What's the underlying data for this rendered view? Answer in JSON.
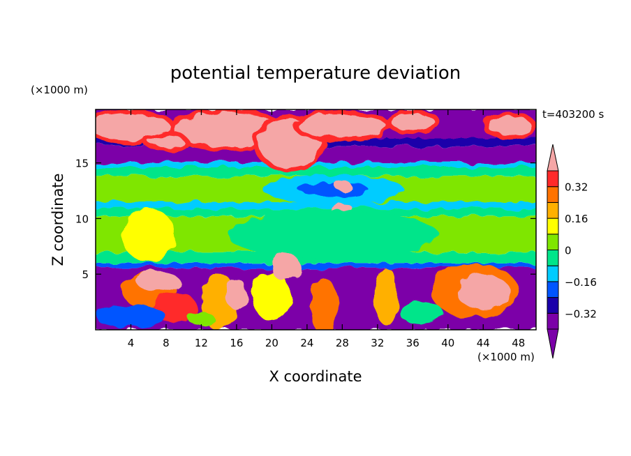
{
  "chart_data": {
    "type": "heatmap",
    "title": "potential temperature deviation",
    "xlabel": "X coordinate",
    "ylabel": "Z coordinate",
    "x_unit": "(×1000 m)",
    "y_unit": "(×1000 m)",
    "time_label": "t=403200 s",
    "xlim": [
      0,
      50
    ],
    "ylim": [
      0,
      19.8
    ],
    "x_ticks": [
      4,
      8,
      12,
      16,
      20,
      24,
      28,
      32,
      36,
      40,
      44,
      48
    ],
    "x_tick_labels": [
      "4",
      "8",
      "12",
      "16",
      "20",
      "24",
      "28",
      "32",
      "36",
      "40",
      "44",
      "48"
    ],
    "y_ticks": [
      5,
      10,
      15
    ],
    "y_tick_labels": [
      "5",
      "10",
      "15"
    ],
    "colorbar": {
      "levels": [
        -0.4,
        -0.32,
        -0.24,
        -0.16,
        -0.08,
        0,
        0.08,
        0.16,
        0.24,
        0.32,
        0.4
      ],
      "labeled_levels": [
        -0.32,
        -0.16,
        0,
        0.16,
        0.32
      ],
      "labels": [
        "−0.32",
        "−0.16",
        "0",
        "0.16",
        "0.32"
      ],
      "colors": [
        "#7b00a8",
        "#1a00aa",
        "#0055ff",
        "#00ccff",
        "#00e58a",
        "#7fe600",
        "#ffff00",
        "#ffb000",
        "#ff7300",
        "#ff2a2a",
        "#f5a6a6"
      ],
      "extend": "both"
    }
  }
}
